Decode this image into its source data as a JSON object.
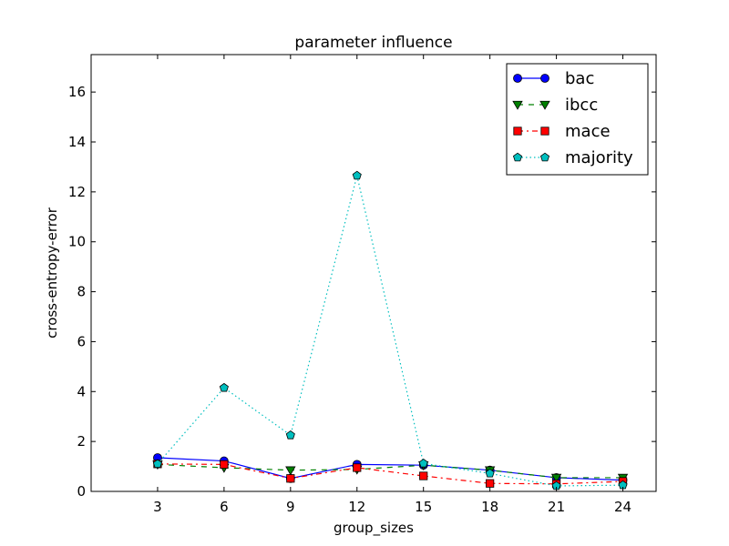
{
  "chart_data": {
    "type": "line",
    "title": "parameter influence",
    "xlabel": "group_sizes",
    "ylabel": "cross-entropy-error",
    "xlim": [
      0,
      25.5
    ],
    "ylim": [
      0,
      17.5
    ],
    "xticks": [
      3,
      6,
      9,
      12,
      15,
      18,
      21,
      24
    ],
    "yticks": [
      0,
      2,
      4,
      6,
      8,
      10,
      12,
      14,
      16
    ],
    "grid": false,
    "legend_position": "top-right",
    "x": [
      3,
      6,
      9,
      12,
      15,
      18,
      21,
      24
    ],
    "series": [
      {
        "name": "bac",
        "color": "#0000ff",
        "marker": "circle",
        "dash": "solid",
        "values": [
          1.35,
          1.22,
          0.52,
          1.08,
          1.05,
          0.85,
          0.55,
          0.45
        ]
      },
      {
        "name": "ibcc",
        "color": "#008000",
        "marker": "triangle-down",
        "dash": "dashed",
        "values": [
          1.08,
          0.95,
          0.85,
          0.88,
          1.05,
          0.85,
          0.55,
          0.55
        ]
      },
      {
        "name": "mace",
        "color": "#ff0000",
        "marker": "square",
        "dash": "dashdot",
        "values": [
          1.1,
          1.08,
          0.52,
          0.95,
          0.62,
          0.32,
          0.3,
          0.4
        ]
      },
      {
        "name": "majority",
        "color": "#00bfbf",
        "marker": "pentagon",
        "dash": "dotted",
        "values": [
          1.1,
          4.15,
          2.25,
          12.65,
          1.12,
          0.72,
          0.22,
          0.25
        ]
      }
    ]
  }
}
